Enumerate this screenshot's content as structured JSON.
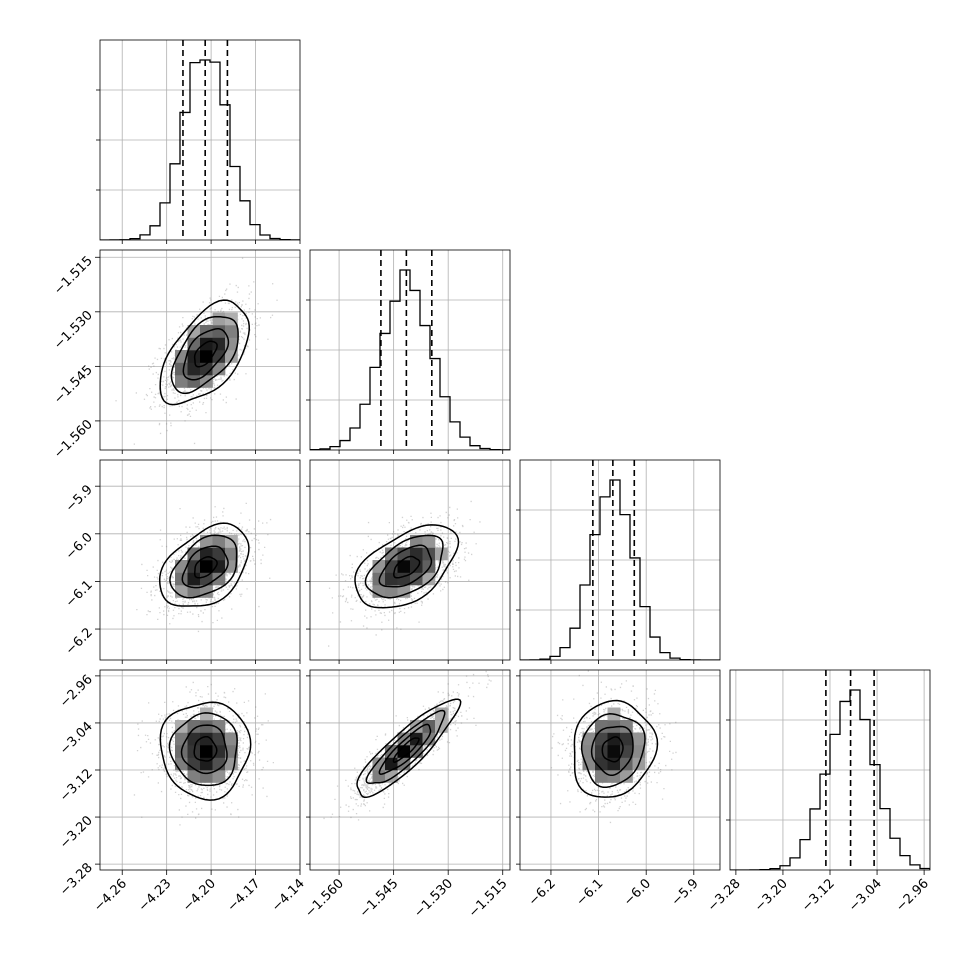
{
  "chart_data": {
    "type": "corner",
    "parameters": [
      {
        "index": 0,
        "range": [
          -4.275,
          -4.14
        ],
        "ticks": [
          -4.26,
          -4.23,
          -4.2,
          -4.17,
          -4.14
        ],
        "tick_labels": [
          "−4.26",
          "−4.23",
          "−4.20",
          "−4.17",
          "−4.14"
        ],
        "quantiles": [
          -4.219,
          -4.204,
          -4.189
        ]
      },
      {
        "index": 1,
        "range": [
          -1.568,
          -1.513
        ],
        "ticks": [
          -1.56,
          -1.545,
          -1.53,
          -1.515
        ],
        "tick_labels": [
          "−1.560",
          "−1.545",
          "−1.530",
          "−1.515"
        ],
        "quantiles": [
          -1.5485,
          -1.5415,
          -1.5345
        ]
      },
      {
        "index": 2,
        "range": [
          -6.265,
          -5.845
        ],
        "ticks": [
          -6.2,
          -6.1,
          -6.0,
          -5.9
        ],
        "tick_labels": [
          "−6.2",
          "−6.1",
          "−6.0",
          "−5.9"
        ],
        "quantiles": [
          -6.112,
          -6.07,
          -6.025
        ]
      },
      {
        "index": 3,
        "range": [
          -3.29,
          -2.95
        ],
        "ticks": [
          -3.28,
          -3.2,
          -3.12,
          -3.04,
          -2.96
        ],
        "tick_labels": [
          "−3.28",
          "−3.20",
          "−3.12",
          "−3.04",
          "−2.96"
        ],
        "quantiles": [
          -3.127,
          -3.085,
          -3.045
        ]
      }
    ],
    "correlations": [
      {
        "row": 1,
        "col": 0,
        "rho": 0.55
      },
      {
        "row": 2,
        "col": 0,
        "rho": 0.4
      },
      {
        "row": 2,
        "col": 1,
        "rho": 0.5
      },
      {
        "row": 3,
        "col": 0,
        "rho": 0.0
      },
      {
        "row": 3,
        "col": 1,
        "rho": 0.88
      },
      {
        "row": 3,
        "col": 2,
        "rho": 0.1
      }
    ],
    "histogram_bins": 20,
    "quantile_line_style": "dashed",
    "contour_levels_sigma": [
      0.5,
      1.0,
      1.5,
      2.0
    ],
    "grid": true,
    "colors": {
      "line": "#000000",
      "grid": "#b0b0b0",
      "points": "#7f7f7f"
    }
  }
}
